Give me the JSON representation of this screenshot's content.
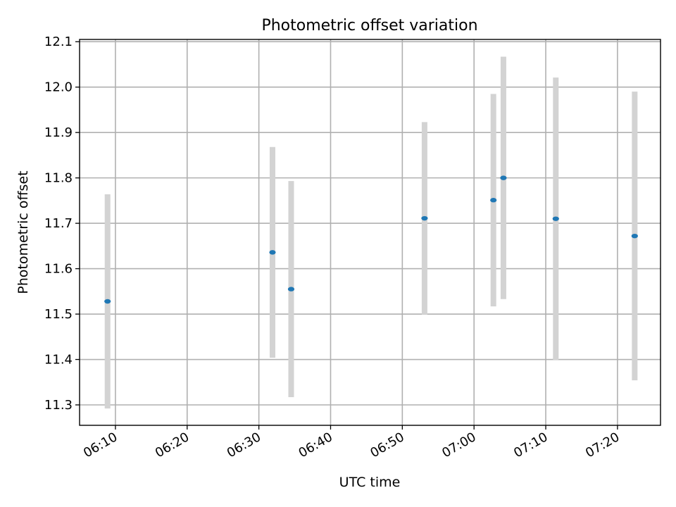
{
  "chart_data": {
    "type": "scatter",
    "title": "Photometric offset variation",
    "xlabel": "UTC time",
    "ylabel": "Photometric offset",
    "grid": true,
    "x_ticks": [
      "06:10",
      "06:20",
      "06:30",
      "06:40",
      "06:50",
      "07:00",
      "07:10",
      "07:20"
    ],
    "y_ticks": [
      "11.3",
      "11.4",
      "11.5",
      "11.6",
      "11.7",
      "11.8",
      "11.9",
      "12.0",
      "12.1"
    ],
    "xlim": [
      "06:05",
      "07:26"
    ],
    "ylim": [
      11.255,
      12.105
    ],
    "colors": {
      "points": "#1f77b4",
      "error_bars": "#d3d3d3",
      "grid": "#b0b0b0"
    },
    "series": [
      {
        "x": [
          "06:08:54",
          "06:31:54",
          "06:34:30",
          "06:53:06",
          "07:02:42",
          "07:04:06",
          "07:11:24",
          "07:22:24"
        ],
        "y": [
          11.528,
          11.636,
          11.555,
          11.711,
          11.751,
          11.8,
          11.71,
          11.672
        ],
        "yerr": [
          0.236,
          0.232,
          0.238,
          0.212,
          0.234,
          0.267,
          0.311,
          0.318
        ]
      }
    ]
  }
}
